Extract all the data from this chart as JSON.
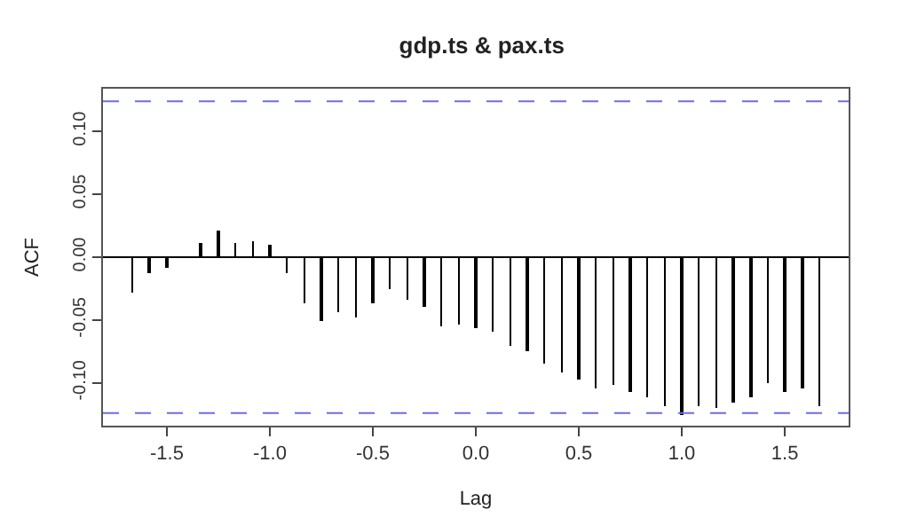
{
  "chart_data": {
    "type": "bar",
    "title": "gdp.ts & pax.ts",
    "xlabel": "Lag",
    "ylabel": "ACF",
    "x": [
      -1.667,
      -1.583,
      -1.5,
      -1.417,
      -1.333,
      -1.25,
      -1.167,
      -1.083,
      -1.0,
      -0.917,
      -0.833,
      -0.75,
      -0.667,
      -0.583,
      -0.5,
      -0.417,
      -0.333,
      -0.25,
      -0.167,
      -0.083,
      0.0,
      0.083,
      0.167,
      0.25,
      0.333,
      0.417,
      0.5,
      0.583,
      0.667,
      0.75,
      0.833,
      0.917,
      1.0,
      1.083,
      1.167,
      1.25,
      1.333,
      1.417,
      1.5,
      1.583,
      1.667
    ],
    "values": [
      -0.028,
      -0.013,
      -0.009,
      null,
      0.011,
      0.021,
      0.011,
      0.013,
      0.01,
      -0.013,
      -0.037,
      -0.051,
      -0.044,
      -0.048,
      -0.036,
      -0.026,
      -0.034,
      -0.04,
      -0.055,
      -0.053,
      -0.056,
      -0.059,
      -0.07,
      -0.075,
      -0.085,
      -0.092,
      -0.098,
      -0.104,
      -0.102,
      -0.107,
      -0.111,
      -0.118,
      -0.126,
      -0.119,
      -0.12,
      -0.115,
      -0.111,
      -0.1,
      -0.107,
      -0.105,
      -0.118
    ],
    "color": "#000000",
    "xlim": [
      -1.81,
      1.81
    ],
    "xticks": [
      {
        "value": -1.5,
        "label": "-1.5"
      },
      {
        "value": -1.0,
        "label": "-1.0"
      },
      {
        "value": -0.5,
        "label": "-0.5"
      },
      {
        "value": 0.0,
        "label": "0.0"
      },
      {
        "value": 0.5,
        "label": "0.5"
      },
      {
        "value": 1.0,
        "label": "1.0"
      },
      {
        "value": 1.5,
        "label": "1.5"
      }
    ],
    "ylim": [
      -0.134,
      0.134
    ],
    "yticks": [
      {
        "value": -0.1,
        "label": "-0.10"
      },
      {
        "value": -0.05,
        "label": "-0.05"
      },
      {
        "value": 0.0,
        "label": "0.00"
      },
      {
        "value": 0.05,
        "label": "0.05"
      },
      {
        "value": 0.1,
        "label": "0.10"
      }
    ],
    "ref_lines": [
      {
        "axis": "y",
        "value": 0,
        "color": "#000000",
        "line_style": "solid"
      },
      {
        "axis": "y",
        "value": 0.124,
        "color": "#6b6bf0",
        "line_style": "dashed"
      },
      {
        "axis": "y",
        "value": -0.124,
        "color": "#6b6bf0",
        "line_style": "dashed"
      }
    ]
  }
}
